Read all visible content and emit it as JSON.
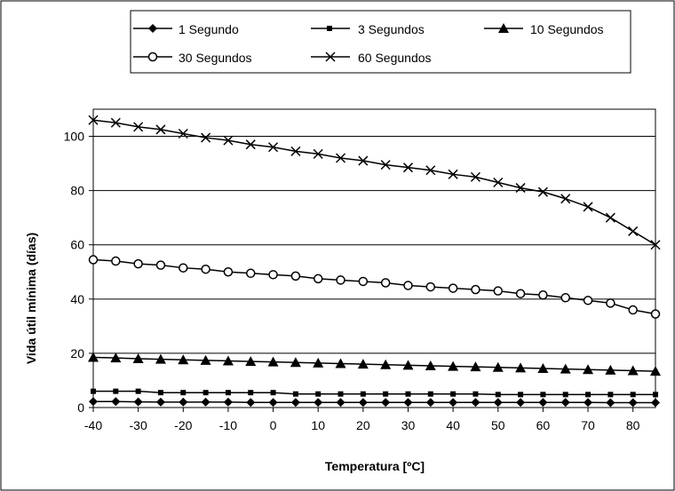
{
  "chart_data": {
    "type": "line",
    "xlabel": "Temperatura [ºC]",
    "ylabel": "Vida útil mínima (días)",
    "xlim": [
      -40,
      85
    ],
    "ylim": [
      0,
      110
    ],
    "x_ticks": [
      -40,
      -30,
      -20,
      -10,
      0,
      10,
      20,
      30,
      40,
      50,
      60,
      70,
      80
    ],
    "y_ticks": [
      0,
      20,
      40,
      60,
      80,
      100
    ],
    "grid": "horizontal",
    "legend_position": "top",
    "x": [
      -40,
      -35,
      -30,
      -25,
      -20,
      -15,
      -10,
      -5,
      0,
      5,
      10,
      15,
      20,
      25,
      30,
      35,
      40,
      45,
      50,
      55,
      60,
      65,
      70,
      75,
      80,
      85
    ],
    "series": [
      {
        "name": "1 Segundo",
        "marker": "diamond",
        "values": [
          2.2,
          2.2,
          2.1,
          2.0,
          2.0,
          2.0,
          2.0,
          1.9,
          1.9,
          1.9,
          1.9,
          1.9,
          1.9,
          1.9,
          1.9,
          1.9,
          1.9,
          1.9,
          1.9,
          1.9,
          1.9,
          1.9,
          1.9,
          1.8,
          1.8,
          1.8
        ]
      },
      {
        "name": "3 Segundos",
        "marker": "square",
        "values": [
          6.0,
          6.0,
          6.0,
          5.5,
          5.5,
          5.5,
          5.5,
          5.5,
          5.5,
          5.0,
          5.0,
          5.0,
          5.0,
          5.0,
          5.0,
          5.0,
          5.0,
          5.0,
          4.8,
          4.8,
          4.8,
          4.8,
          4.8,
          4.8,
          4.8,
          4.8
        ]
      },
      {
        "name": "10 Segundos",
        "marker": "triangle",
        "values": [
          18.5,
          18.3,
          18.0,
          17.8,
          17.6,
          17.4,
          17.2,
          17.0,
          16.8,
          16.6,
          16.4,
          16.2,
          16.0,
          15.8,
          15.6,
          15.4,
          15.2,
          15.0,
          14.8,
          14.6,
          14.4,
          14.2,
          14.0,
          13.8,
          13.6,
          13.4
        ]
      },
      {
        "name": "30 Segundos",
        "marker": "circle",
        "values": [
          54.5,
          54.0,
          53.0,
          52.5,
          51.5,
          51.0,
          50.0,
          49.5,
          49.0,
          48.5,
          47.5,
          47.0,
          46.5,
          46.0,
          45.0,
          44.5,
          44.0,
          43.5,
          43.0,
          42.0,
          41.5,
          40.5,
          39.5,
          38.5,
          36.0,
          34.5
        ]
      },
      {
        "name": "60 Segundos",
        "marker": "x",
        "values": [
          106.0,
          105.0,
          103.5,
          102.5,
          101.0,
          99.5,
          98.5,
          97.0,
          96.0,
          94.5,
          93.5,
          92.0,
          91.0,
          89.5,
          88.5,
          87.5,
          86.0,
          85.0,
          83.0,
          81.0,
          79.5,
          77.0,
          74.0,
          70.0,
          65.0,
          60.0
        ]
      }
    ]
  }
}
